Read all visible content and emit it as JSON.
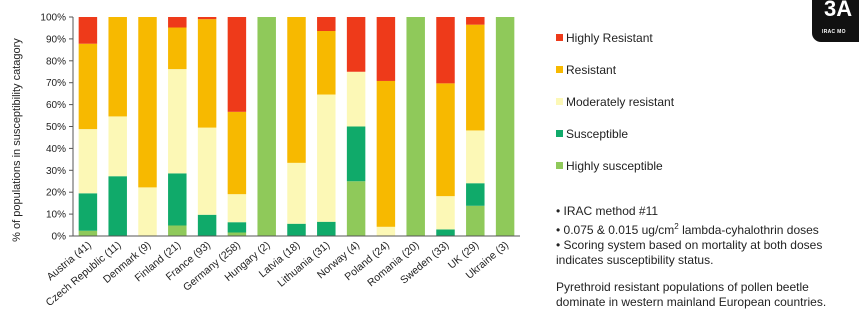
{
  "logo": {
    "big": "3A",
    "small": "IRAC MO"
  },
  "legend": [
    {
      "label": "Highly Resistant",
      "color": "#ee3a1a"
    },
    {
      "label": "Resistant",
      "color": "#f7b900"
    },
    {
      "label": "Moderately resistant",
      "color": "#fcf8b6"
    },
    {
      "label": "Susceptible",
      "color": "#10aa6a"
    },
    {
      "label": "Highly susceptible",
      "color": "#8fc95a"
    }
  ],
  "notes": {
    "line1": "• IRAC method #11",
    "line2_pre": "• 0.075 & 0.015 ug/cm",
    "line2_sup": "2",
    "line2_post": " lambda-cyhalothrin  doses",
    "line3": "• Scoring system based on mortality at both doses",
    "line4": "indicates susceptibility status.",
    "line5": "Pyrethroid resistant populations of pollen beetle",
    "line6": "dominate in western mainland European countries."
  },
  "chart_data": {
    "type": "bar",
    "stacked": true,
    "ylabel": "% of populations in susceptibility catagory",
    "xlabel": "",
    "ylim": [
      0,
      100
    ],
    "yticks": [
      "0%",
      "10%",
      "20%",
      "30%",
      "40%",
      "50%",
      "60%",
      "70%",
      "80%",
      "90%",
      "100%"
    ],
    "grid": false,
    "categories": [
      "Austria (41)",
      "Czech Republic (11)",
      "Denmark (9)",
      "Finland (21)",
      "France (93)",
      "Germany (258)",
      "Hungary (2)",
      "Latvia (18)",
      "Lithuania (31)",
      "Norway (4)",
      "Poland (24)",
      "Romania (20)",
      "Sweden (33)",
      "UK (29)",
      "Ukraine (3)"
    ],
    "series": [
      {
        "name": "Highly susceptible",
        "color": "#8fc95a",
        "values": [
          2.4,
          0,
          0,
          4.8,
          0,
          1.6,
          100,
          0,
          0,
          25,
          0,
          100,
          0,
          13.8,
          100
        ]
      },
      {
        "name": "Susceptible",
        "color": "#10aa6a",
        "values": [
          17.1,
          27.3,
          0,
          23.8,
          9.7,
          4.7,
          0,
          5.6,
          6.5,
          25,
          0,
          0,
          3,
          10.3,
          0
        ]
      },
      {
        "name": "Moderately resistant",
        "color": "#fcf8b6",
        "values": [
          29.3,
          27.3,
          22.2,
          47.6,
          39.8,
          12.8,
          0,
          27.8,
          58.1,
          25,
          4.2,
          0,
          15.2,
          24.1,
          0
        ]
      },
      {
        "name": "Resistant",
        "color": "#f7b900",
        "values": [
          39,
          45.4,
          77.8,
          19,
          49.5,
          37.6,
          0,
          66.6,
          29,
          0,
          66.6,
          0,
          51.5,
          48.3,
          0
        ]
      },
      {
        "name": "Highly Resistant",
        "color": "#ee3a1a",
        "values": [
          12.2,
          0,
          0,
          4.8,
          1,
          43.3,
          0,
          0,
          6.4,
          25,
          29.2,
          0,
          30.3,
          3.5,
          0
        ]
      }
    ]
  }
}
